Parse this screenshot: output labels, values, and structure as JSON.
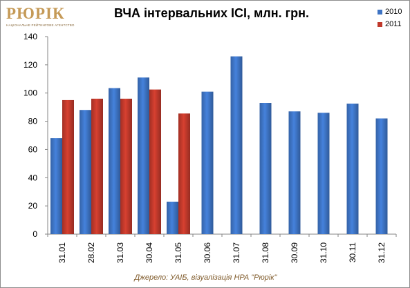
{
  "logo": {
    "name": "РЮРІК",
    "tagline": "НАЦІОНАЛЬНЕ РЕЙТИНГОВЕ АГЕНТСТВО"
  },
  "chart_data": {
    "type": "bar",
    "title": "ВЧА інтервальних ІСІ, млн. грн.",
    "categories": [
      "31.01",
      "28.02",
      "31.03",
      "30.04",
      "31.05",
      "30.06",
      "31.07",
      "31.08",
      "30.09",
      "31.10",
      "30.11",
      "31.12"
    ],
    "series": [
      {
        "name": "2010",
        "color": "#3e74c4",
        "values": [
          68,
          88,
          103.5,
          111,
          23,
          101,
          126,
          93,
          87,
          86,
          92.5,
          82
        ]
      },
      {
        "name": "2011",
        "color": "#c0392b",
        "values": [
          95,
          96,
          96,
          102.5,
          85.5,
          null,
          null,
          null,
          null,
          null,
          null,
          null
        ]
      }
    ],
    "ylim": [
      0,
      140
    ],
    "yticks": [
      "0",
      "20",
      "40",
      "60",
      "80",
      "100",
      "120",
      "140"
    ],
    "grid": false,
    "legend_position": "top-right"
  },
  "source": "Джерело: УАІБ, візуалізація НРА \"Рюрік\""
}
